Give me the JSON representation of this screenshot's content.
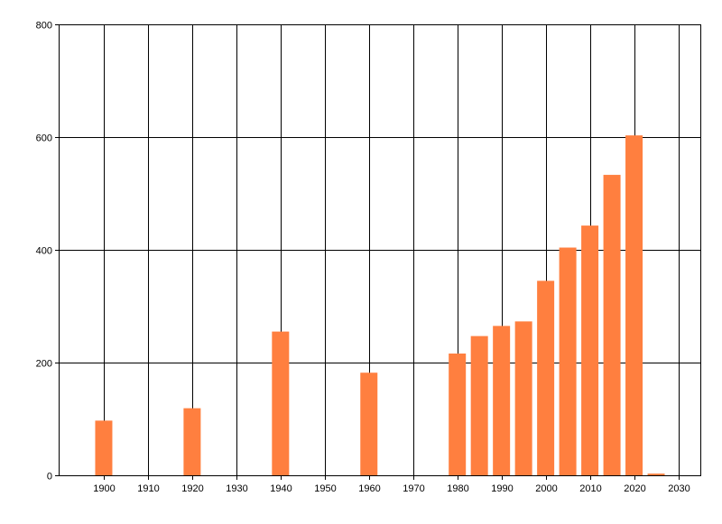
{
  "chart_data": {
    "type": "bar",
    "title": "",
    "xlabel": "",
    "ylabel": "",
    "x": [
      1900,
      1920,
      1940,
      1960,
      1980,
      1985,
      1990,
      1995,
      2000,
      2005,
      2010,
      2015,
      2020,
      2025
    ],
    "values": [
      97,
      119,
      255,
      182,
      216,
      247,
      265,
      273,
      345,
      404,
      443,
      533,
      603,
      3
    ],
    "xlim": [
      1890,
      2035
    ],
    "ylim": [
      0,
      800
    ],
    "x_ticks": [
      1900,
      1910,
      1920,
      1930,
      1940,
      1950,
      1960,
      1970,
      1980,
      1990,
      2000,
      2010,
      2020,
      2030
    ],
    "x_tick_labels": [
      "1900",
      "1910",
      "1920",
      "1930",
      "1940",
      "1950",
      "1960",
      "1970",
      "1980",
      "1990",
      "2000",
      "2010",
      "2020",
      "2030"
    ],
    "y_ticks": [
      0,
      200,
      400,
      600,
      800
    ],
    "y_tick_labels": [
      "0",
      "200",
      "400",
      "600",
      "800"
    ],
    "grid": true,
    "bar_color": "#ff7f3f",
    "axis_color": "#000000"
  }
}
